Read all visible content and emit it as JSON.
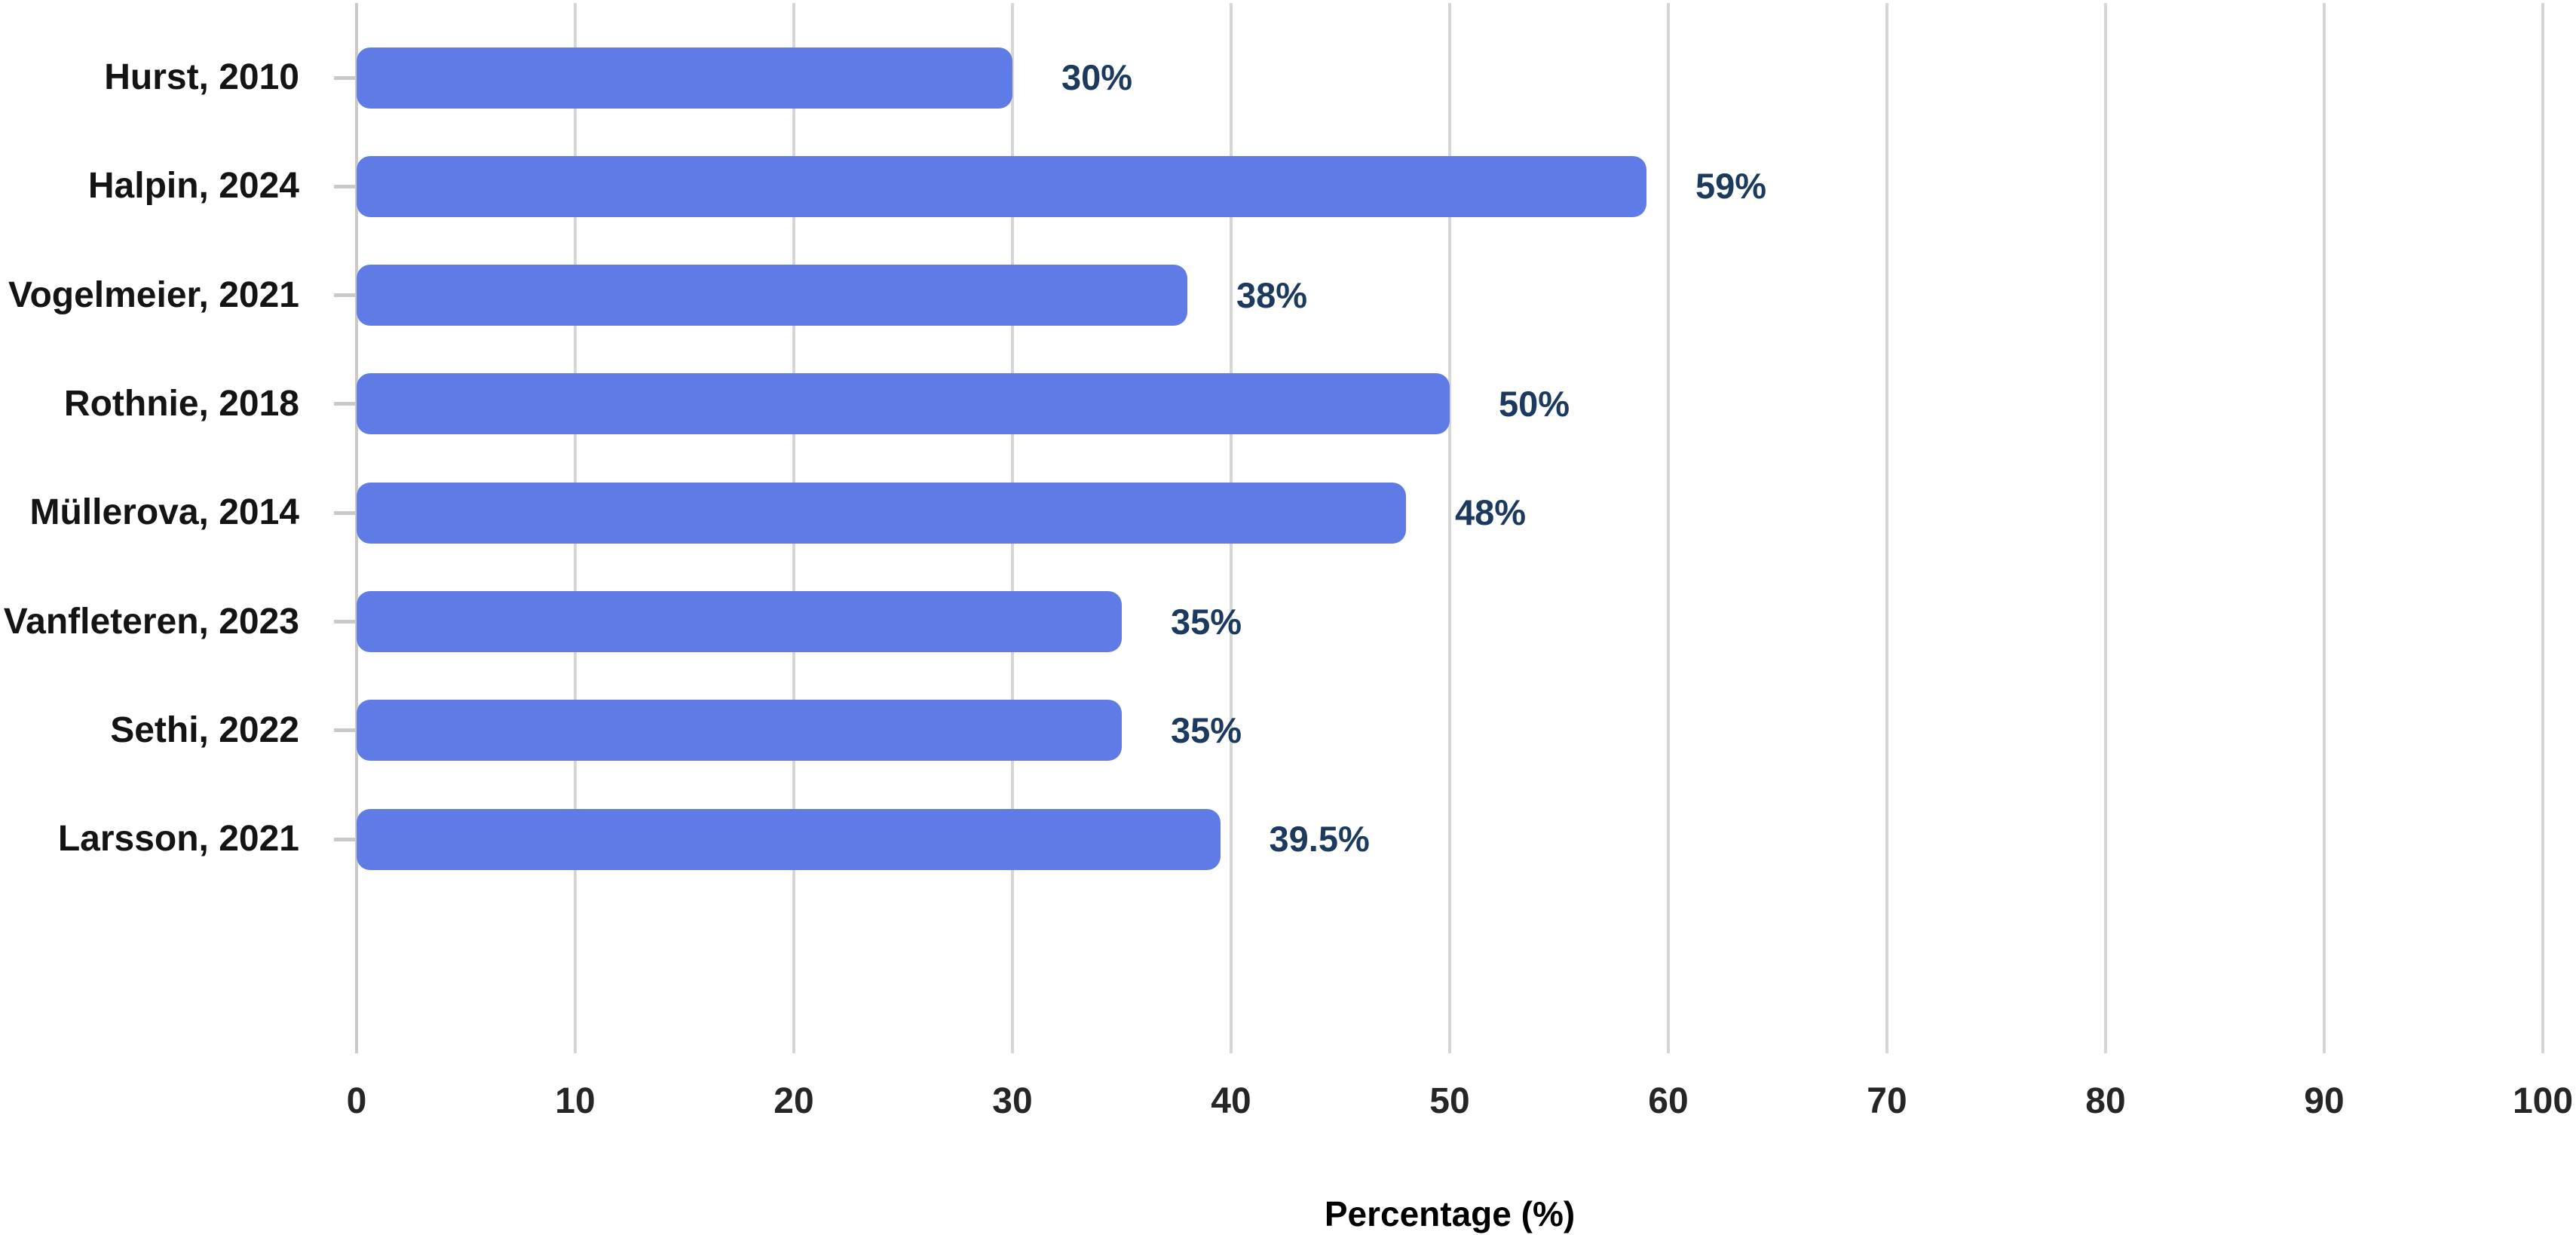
{
  "chart_data": {
    "type": "bar",
    "orientation": "horizontal",
    "title": "",
    "categories": [
      "Hurst, 2010",
      "Halpin, 2024",
      "Vogelmeier, 2021",
      "Rothnie, 2018",
      "Müllerova, 2014",
      "Vanfleteren, 2023",
      "Sethi, 2022",
      "Larsson, 2021"
    ],
    "values": [
      30,
      59,
      38,
      50,
      48,
      35,
      35,
      39.5
    ],
    "value_labels": [
      "30%",
      "59%",
      "38%",
      "50%",
      "48%",
      "35%",
      "35%",
      "39.5%"
    ],
    "xlabel": "Percentage (%)",
    "ylabel": "",
    "xlim": [
      0,
      100
    ],
    "x_ticks": [
      0,
      10,
      20,
      30,
      40,
      50,
      60,
      70,
      80,
      90,
      100
    ],
    "grid": true,
    "legend": "none",
    "colors": {
      "bar": "#5F7CE6",
      "value_label": "#1C3A5E",
      "category_label": "#141414",
      "tick_label": "#262626",
      "gridline": "#d6d6d6",
      "axis_line": "#c9c9c9"
    }
  }
}
